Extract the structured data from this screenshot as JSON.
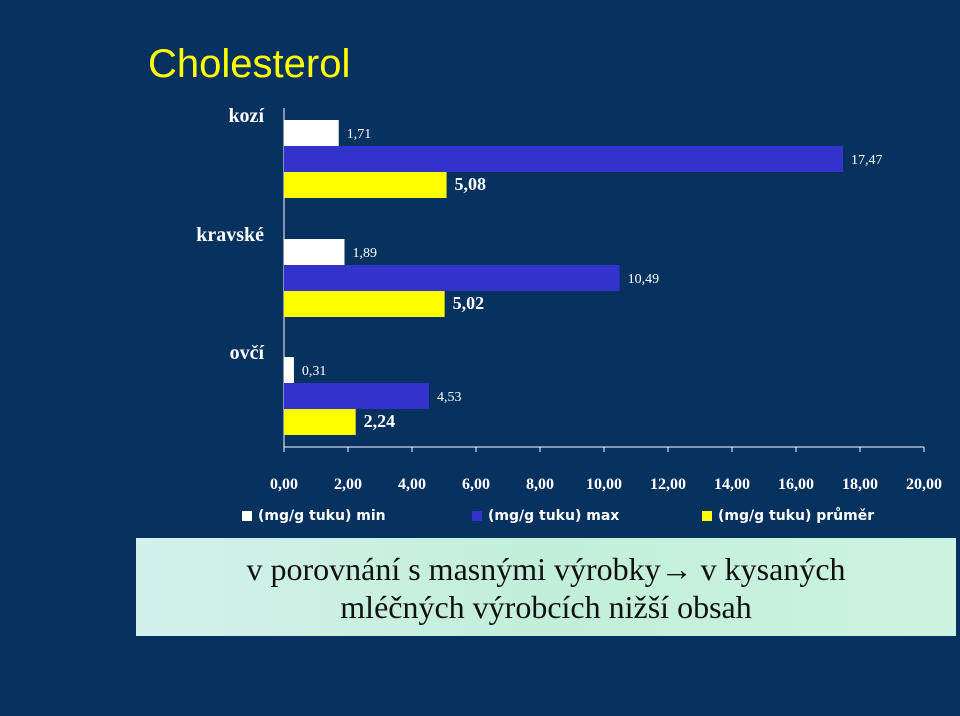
{
  "title": "Cholesterol",
  "chart_data": {
    "type": "bar",
    "orientation": "horizontal",
    "categories": [
      "kozí",
      "kravské",
      "ovčí"
    ],
    "series": [
      {
        "name": "(mg/g tuku) min",
        "color": "#ffffff",
        "values": [
          1.71,
          1.89,
          0.31
        ],
        "labels": [
          "1,71",
          "1,89",
          "0,31"
        ]
      },
      {
        "name": "(mg/g tuku) max",
        "color": "#3333cc",
        "values": [
          17.47,
          10.49,
          4.53
        ],
        "labels": [
          "17,47",
          "10,49",
          "4,53"
        ]
      },
      {
        "name": "(mg/g tuku) průměr",
        "color": "#ffff00",
        "values": [
          5.08,
          5.02,
          2.24
        ],
        "labels": [
          "5,08",
          "5,02",
          "2,24"
        ]
      }
    ],
    "xlim": [
      0,
      20
    ],
    "tick_labels": [
      "0,00",
      "2,00",
      "4,00",
      "6,00",
      "8,00",
      "10,00",
      "12,00",
      "14,00",
      "16,00",
      "18,00",
      "20,00"
    ],
    "legend_position": "bottom",
    "grid": false
  },
  "note": {
    "line1": "v porovnání s masnými výrobky",
    "arrow": "→",
    "line1_end": " v kysaných",
    "line2": "mléčných výrobcích nižší obsah"
  }
}
